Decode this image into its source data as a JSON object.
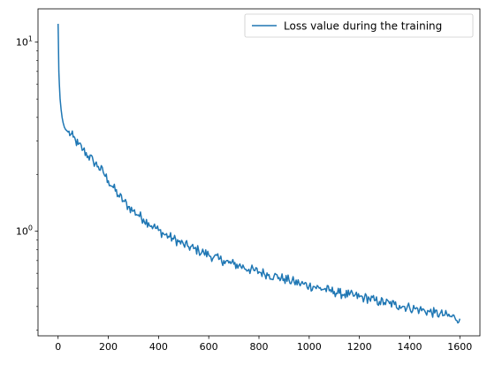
{
  "chart_data": {
    "type": "line",
    "title": "",
    "xlabel": "",
    "ylabel": "",
    "yscale": "log",
    "xlim": [
      -80,
      1680
    ],
    "ylim": [
      0.28,
      15.0
    ],
    "grid": false,
    "legend_placement": "top-right",
    "x_ticks": [
      {
        "value": 0,
        "label": "0"
      },
      {
        "value": 200,
        "label": "200"
      },
      {
        "value": 400,
        "label": "400"
      },
      {
        "value": 600,
        "label": "600"
      },
      {
        "value": 800,
        "label": "800"
      },
      {
        "value": 1000,
        "label": "1000"
      },
      {
        "value": 1200,
        "label": "1200"
      },
      {
        "value": 1400,
        "label": "1400"
      },
      {
        "value": 1600,
        "label": "1600"
      }
    ],
    "y_major_ticks": [
      {
        "value": 1,
        "base": "10",
        "exp": "0"
      },
      {
        "value": 10,
        "base": "10",
        "exp": "1"
      }
    ],
    "y_minor_ticks": [
      0.3,
      0.4,
      0.5,
      0.6,
      0.7,
      0.8,
      0.9,
      2,
      3,
      4,
      5,
      6,
      7,
      8,
      9
    ],
    "series": [
      {
        "name": "Loss value during the training",
        "color": "#1f77b4",
        "x": [
          0,
          1,
          2,
          3,
          5,
          8,
          12,
          16,
          20,
          25,
          30,
          40,
          50,
          60,
          70,
          80,
          100,
          120,
          140,
          160,
          180,
          200,
          220,
          240,
          260,
          280,
          300,
          320,
          340,
          360,
          380,
          400,
          420,
          440,
          460,
          480,
          500,
          520,
          540,
          560,
          580,
          600,
          620,
          640,
          660,
          680,
          700,
          720,
          740,
          760,
          780,
          800,
          820,
          840,
          860,
          880,
          900,
          920,
          940,
          960,
          980,
          1000,
          1020,
          1040,
          1060,
          1080,
          1100,
          1120,
          1140,
          1160,
          1180,
          1200,
          1220,
          1240,
          1260,
          1280,
          1300,
          1320,
          1340,
          1360,
          1380,
          1400,
          1420,
          1440,
          1460,
          1480,
          1500,
          1520,
          1540,
          1560,
          1580,
          1600
        ],
        "values": [
          12.5,
          10.5,
          8.5,
          7.0,
          6.0,
          5.0,
          4.4,
          4.0,
          3.75,
          3.55,
          3.45,
          3.35,
          3.25,
          3.15,
          3.0,
          2.88,
          2.7,
          2.5,
          2.35,
          2.2,
          2.05,
          1.85,
          1.7,
          1.55,
          1.45,
          1.35,
          1.28,
          1.22,
          1.16,
          1.11,
          1.06,
          1.01,
          0.97,
          0.94,
          0.91,
          0.88,
          0.85,
          0.83,
          0.81,
          0.79,
          0.77,
          0.75,
          0.73,
          0.71,
          0.7,
          0.68,
          0.67,
          0.66,
          0.645,
          0.63,
          0.62,
          0.61,
          0.6,
          0.59,
          0.58,
          0.57,
          0.56,
          0.55,
          0.54,
          0.53,
          0.525,
          0.515,
          0.51,
          0.5,
          0.495,
          0.485,
          0.48,
          0.47,
          0.465,
          0.46,
          0.455,
          0.45,
          0.445,
          0.44,
          0.43,
          0.425,
          0.42,
          0.415,
          0.41,
          0.405,
          0.4,
          0.395,
          0.39,
          0.385,
          0.38,
          0.375,
          0.37,
          0.365,
          0.36,
          0.355,
          0.35,
          0.345
        ]
      }
    ]
  }
}
